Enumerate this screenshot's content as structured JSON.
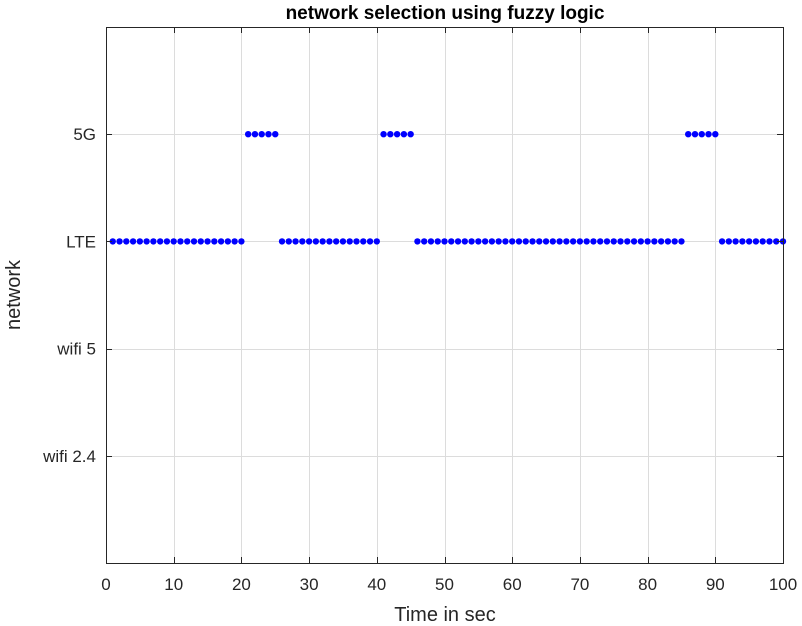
{
  "chart_data": {
    "type": "scatter",
    "title": "network selection using fuzzy logic",
    "xlabel": "Time in sec",
    "ylabel": "network",
    "xlim": [
      0,
      100
    ],
    "ylim": [
      0,
      5
    ],
    "xticks": [
      0,
      10,
      20,
      30,
      40,
      50,
      60,
      70,
      80,
      90,
      100
    ],
    "yticks": [
      1,
      2,
      3,
      4
    ],
    "ytick_labels": [
      "wifi 2.4",
      "wifi 5",
      "LTE",
      "5G"
    ],
    "grid": true,
    "marker_color": "#0000ff",
    "series": [
      {
        "name": "network",
        "segments": [
          {
            "x_start": 1,
            "x_end": 20,
            "y": 3
          },
          {
            "x_start": 21,
            "x_end": 25,
            "y": 4
          },
          {
            "x_start": 26,
            "x_end": 40,
            "y": 3
          },
          {
            "x_start": 41,
            "x_end": 45,
            "y": 4
          },
          {
            "x_start": 46,
            "x_end": 85,
            "y": 3
          },
          {
            "x_start": 86,
            "x_end": 90,
            "y": 4
          },
          {
            "x_start": 91,
            "x_end": 100,
            "y": 3
          }
        ]
      }
    ]
  }
}
